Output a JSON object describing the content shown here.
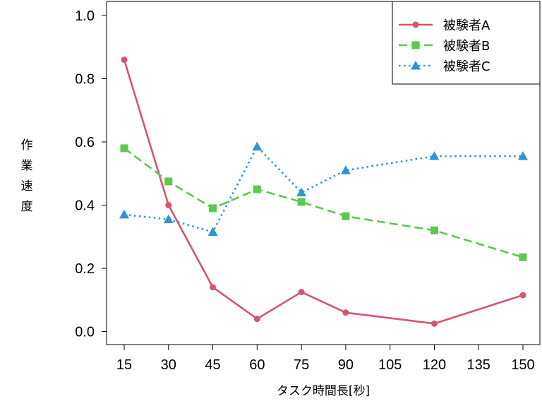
{
  "chart_data": {
    "type": "line",
    "xlabel": "タスク時間長[秒]",
    "ylabel_chars": [
      "作",
      "業",
      "速",
      "度"
    ],
    "x_ticks": [
      15,
      30,
      45,
      60,
      75,
      90,
      105,
      120,
      135,
      150
    ],
    "y_ticks": [
      "0.0",
      "0.2",
      "0.4",
      "0.6",
      "0.8",
      "1.0"
    ],
    "xlim": [
      15,
      150
    ],
    "ylim": [
      0,
      1
    ],
    "legend_position": "top-right",
    "x": [
      15,
      30,
      45,
      60,
      75,
      90,
      120,
      150
    ],
    "series": [
      {
        "name": "被験者A",
        "color": "#d5556e",
        "line_style": "solid",
        "marker": "circle",
        "values": [
          0.86,
          0.4,
          0.14,
          0.04,
          0.125,
          0.06,
          0.025,
          0.115
        ]
      },
      {
        "name": "被験者B",
        "color": "#5bc94d",
        "line_style": "dashed",
        "marker": "square",
        "values": [
          0.58,
          0.475,
          0.39,
          0.45,
          0.41,
          0.365,
          0.32,
          0.235
        ]
      },
      {
        "name": "被験者C",
        "color": "#2d94d8",
        "line_style": "dotted",
        "marker": "triangle",
        "values": [
          0.37,
          0.355,
          0.315,
          0.585,
          0.44,
          0.51,
          0.555,
          0.555
        ]
      }
    ]
  }
}
